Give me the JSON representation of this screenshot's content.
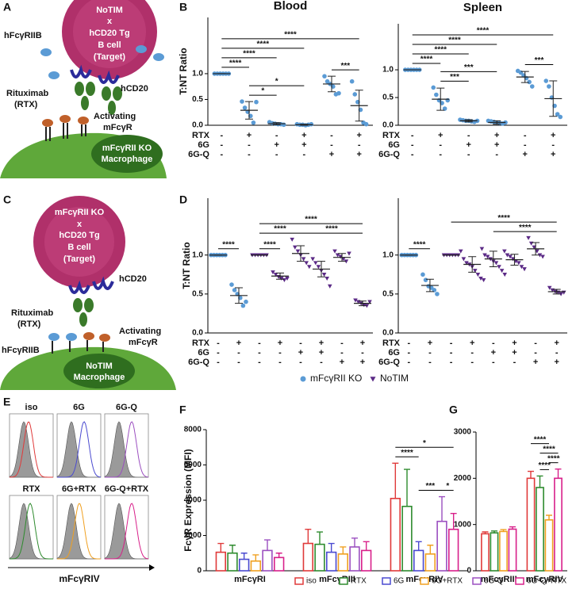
{
  "panel_labels": [
    "A",
    "B",
    "C",
    "D",
    "E",
    "F",
    "G"
  ],
  "diagram_A": {
    "target": [
      "NoTIM",
      "x",
      "hCD20 Tg",
      "B cell",
      "(Target)"
    ],
    "inhibitory": "hFcγRIIB",
    "antibody": [
      "Rituximab",
      "(RTX)"
    ],
    "antigen": "hCD20",
    "activating": [
      "Activating",
      "mFcγR"
    ],
    "macrophage": [
      "mFcγRII KO",
      "Macrophage"
    ]
  },
  "diagram_C": {
    "target": [
      "mFcγRII KO",
      "x",
      "hCD20 Tg",
      "B cell",
      "(Target)"
    ],
    "antigen": "hCD20",
    "antibody": [
      "Rituximab",
      "(RTX)"
    ],
    "inhibitory": "hFcγRIIB",
    "activating": [
      "Activating",
      "mFcγR"
    ],
    "macrophage": [
      "NoTIM",
      "Macrophage"
    ]
  },
  "flow": {
    "panels": [
      "iso",
      "6G",
      "6G-Q",
      "RTX",
      "6G+RTX",
      "6G-Q+RTX"
    ],
    "colors": [
      "#e03a3a",
      "#4a4ad0",
      "#9b4fc0",
      "#2e8b2e",
      "#f0a020",
      "#d8208a"
    ],
    "xlabel": "mFcγRIV"
  },
  "dot_legend": [
    {
      "name": "mFcγRII KO",
      "color": "#5b9bd5",
      "marker": "circle"
    },
    {
      "name": "NoTIM",
      "color": "#5b2a86",
      "marker": "triangle"
    }
  ],
  "chart_data": [
    {
      "type": "dotplot",
      "title": "Blood",
      "ylabel": "T:NT Ratio",
      "ylim": [
        0,
        2.09
      ],
      "yticks": [
        {
          "value": 0,
          "label": "0.0"
        },
        {
          "value": 0.5,
          "label": "0.5"
        },
        {
          "value": 1,
          "label": "1.0"
        }
      ],
      "conditions": [
        {
          "name": "RTX",
          "values": [
            "-",
            "+",
            "-",
            "+",
            "-",
            "+"
          ]
        },
        {
          "name": "6G",
          "values": [
            "-",
            "-",
            "+",
            "+",
            "-",
            "-"
          ]
        },
        {
          "name": "6G-Q",
          "values": [
            "-",
            "-",
            "-",
            "-",
            "+",
            "+"
          ]
        }
      ],
      "groups": [
        {
          "color": "#5b9bd5",
          "marker": "circle",
          "points": [
            1,
            1,
            1,
            1,
            1,
            1
          ],
          "mean": 1,
          "sd": 0
        },
        {
          "color": "#5b9bd5",
          "marker": "circle",
          "points": [
            0.46,
            0.34,
            0.26,
            0.18,
            0.05,
            0.45
          ],
          "mean": 0.29,
          "sd": 0.17
        },
        {
          "color": "#5b9bd5",
          "marker": "circle",
          "points": [
            0.06,
            0.04,
            0.03,
            0.02,
            0.02,
            0.01
          ],
          "mean": 0.03,
          "sd": 0.02
        },
        {
          "color": "#5b9bd5",
          "marker": "circle",
          "points": [
            0.02,
            0.01,
            0.01,
            0,
            0.01,
            0.02
          ],
          "mean": 0.01,
          "sd": 0.01
        },
        {
          "color": "#5b9bd5",
          "marker": "circle",
          "points": [
            0.95,
            0.85,
            0.8,
            0.75,
            0.6,
            0.62
          ],
          "mean": 0.8,
          "sd": 0.15
        },
        {
          "color": "#5b9bd5",
          "marker": "circle",
          "points": [
            0.85,
            0.6,
            0.45,
            0.3,
            0.05,
            0.02
          ],
          "mean": 0.38,
          "sd": 0.3
        }
      ],
      "comparisons": [
        {
          "from": 1,
          "to": 2,
          "label": "*"
        },
        {
          "from": 1,
          "to": 3,
          "label": "*"
        },
        {
          "from": 4,
          "to": 5,
          "label": "***"
        },
        {
          "from": 0,
          "to": 1,
          "label": "****"
        },
        {
          "from": 0,
          "to": 2,
          "label": "****"
        },
        {
          "from": 0,
          "to": 3,
          "label": "****"
        },
        {
          "from": 0,
          "to": 5,
          "label": "****"
        }
      ]
    },
    {
      "type": "dotplot",
      "title": "Spleen",
      "ylim": [
        0,
        1.83
      ],
      "yticks": [
        {
          "value": 0,
          "label": "0.0"
        },
        {
          "value": 0.5,
          "label": "0.5"
        },
        {
          "value": 1,
          "label": "1.0"
        }
      ],
      "conditions": [
        {
          "name": "RTX",
          "values": [
            "-",
            "+",
            "-",
            "+",
            "-",
            "+"
          ]
        },
        {
          "name": "6G",
          "values": [
            "-",
            "-",
            "+",
            "+",
            "-",
            "-"
          ]
        },
        {
          "name": "6G-Q",
          "values": [
            "-",
            "-",
            "-",
            "-",
            "+",
            "+"
          ]
        }
      ],
      "groups": [
        {
          "color": "#5b9bd5",
          "marker": "circle",
          "points": [
            1,
            1,
            1,
            1,
            1,
            1
          ],
          "mean": 1,
          "sd": 0
        },
        {
          "color": "#5b9bd5",
          "marker": "circle",
          "points": [
            0.68,
            0.55,
            0.45,
            0.4,
            0.3,
            0.45
          ],
          "mean": 0.47,
          "sd": 0.2
        },
        {
          "color": "#5b9bd5",
          "marker": "circle",
          "points": [
            0.1,
            0.09,
            0.08,
            0.08,
            0.07,
            0.06,
            0.08
          ],
          "mean": 0.08,
          "sd": 0.02
        },
        {
          "color": "#5b9bd5",
          "marker": "circle",
          "points": [
            0.08,
            0.07,
            0.06,
            0.05,
            0.04,
            0.03,
            0.05
          ],
          "mean": 0.05,
          "sd": 0.03
        },
        {
          "color": "#5b9bd5",
          "marker": "circle",
          "points": [
            0.98,
            0.95,
            0.9,
            0.85,
            0.78,
            0.7
          ],
          "mean": 0.87,
          "sd": 0.1
        },
        {
          "color": "#5b9bd5",
          "marker": "circle",
          "points": [
            0.8,
            0.7,
            0.5,
            0.35,
            0.2,
            0.15
          ],
          "mean": 0.48,
          "sd": 0.32
        }
      ],
      "comparisons": [
        {
          "from": 4,
          "to": 5,
          "label": "***"
        },
        {
          "from": 1,
          "to": 2,
          "label": "***"
        },
        {
          "from": 1,
          "to": 3,
          "label": "***"
        },
        {
          "from": 0,
          "to": 1,
          "label": "****"
        },
        {
          "from": 0,
          "to": 2,
          "label": "****"
        },
        {
          "from": 0,
          "to": 3,
          "label": "****"
        },
        {
          "from": 0,
          "to": 5,
          "label": "****"
        }
      ]
    },
    {
      "type": "dotplot",
      "ylabel": "T:NT Ratio",
      "ylim": [
        0,
        1.73
      ],
      "yticks": [
        {
          "value": 0,
          "label": "0.0"
        },
        {
          "value": 0.5,
          "label": "0.5"
        },
        {
          "value": 1,
          "label": "1.0"
        }
      ],
      "conditions": [
        {
          "name": "RTX",
          "values": [
            "-",
            "+",
            "-",
            "+",
            "-",
            "+",
            "-",
            "+"
          ]
        },
        {
          "name": "6G",
          "values": [
            "-",
            "-",
            "-",
            "-",
            "+",
            "+",
            "-",
            "-"
          ]
        },
        {
          "name": "6G-Q",
          "values": [
            "-",
            "-",
            "-",
            "-",
            "-",
            "-",
            "+",
            "+"
          ]
        }
      ],
      "groups": [
        {
          "color": "#5b9bd5",
          "marker": "circle",
          "points": [
            1,
            1,
            1,
            1,
            1,
            1
          ],
          "mean": 1,
          "sd": 0
        },
        {
          "color": "#5b9bd5",
          "marker": "circle",
          "points": [
            0.62,
            0.55,
            0.5,
            0.45,
            0.35,
            0.4
          ],
          "mean": 0.48,
          "sd": 0.1
        },
        {
          "color": "#5b2a86",
          "marker": "triangle",
          "points": [
            1,
            1,
            1,
            1,
            1,
            1
          ],
          "mean": 1,
          "sd": 0
        },
        {
          "color": "#5b2a86",
          "marker": "triangle",
          "points": [
            0.78,
            0.75,
            0.72,
            0.7,
            0.68,
            0.7
          ],
          "mean": 0.73,
          "sd": 0.04
        },
        {
          "color": "#5b2a86",
          "marker": "triangle",
          "points": [
            1.2,
            1.1,
            1.05,
            1,
            0.95,
            0.9,
            0.85
          ],
          "mean": 1.02,
          "sd": 0.1
        },
        {
          "color": "#5b2a86",
          "marker": "triangle",
          "points": [
            0.95,
            0.9,
            0.85,
            0.8,
            0.75,
            0.7,
            0.6
          ],
          "mean": 0.82,
          "sd": 0.1
        },
        {
          "color": "#5b2a86",
          "marker": "triangle",
          "points": [
            1.05,
            1,
            0.98,
            0.95,
            0.92,
            1.02
          ],
          "mean": 0.97,
          "sd": 0.05
        },
        {
          "color": "#5b2a86",
          "marker": "triangle",
          "points": [
            0.42,
            0.4,
            0.38,
            0.36,
            0.35,
            0.4
          ],
          "mean": 0.38,
          "sd": 0.03
        }
      ],
      "comparisons": [
        {
          "from": 0,
          "to": 1,
          "label": "****"
        },
        {
          "from": 2,
          "to": 3,
          "label": "****"
        },
        {
          "from": 2,
          "to": 4,
          "label": "****"
        },
        {
          "from": 4,
          "to": 7,
          "label": "****"
        },
        {
          "from": 2,
          "to": 7,
          "label": "****"
        }
      ]
    },
    {
      "type": "dotplot",
      "ylim": [
        0,
        1.73
      ],
      "yticks": [
        {
          "value": 0,
          "label": "0.0"
        },
        {
          "value": 0.5,
          "label": "0.5"
        },
        {
          "value": 1,
          "label": "1.0"
        }
      ],
      "conditions": [
        {
          "name": "RTX",
          "values": [
            "-",
            "+",
            "-",
            "+",
            "-",
            "+",
            "-",
            "+"
          ]
        },
        {
          "name": "6G",
          "values": [
            "-",
            "-",
            "-",
            "-",
            "+",
            "+",
            "-",
            "-"
          ]
        },
        {
          "name": "6G-Q",
          "values": [
            "-",
            "-",
            "-",
            "-",
            "-",
            "-",
            "+",
            "+"
          ]
        }
      ],
      "groups": [
        {
          "color": "#5b9bd5",
          "marker": "circle",
          "points": [
            1,
            1,
            1,
            1,
            1,
            1
          ],
          "mean": 1,
          "sd": 0
        },
        {
          "color": "#5b9bd5",
          "marker": "circle",
          "points": [
            0.75,
            0.68,
            0.6,
            0.58,
            0.55,
            0.5
          ],
          "mean": 0.61,
          "sd": 0.08
        },
        {
          "color": "#5b2a86",
          "marker": "triangle",
          "points": [
            1,
            1,
            1,
            1,
            1,
            1
          ],
          "mean": 1,
          "sd": 0
        },
        {
          "color": "#5b2a86",
          "marker": "triangle",
          "points": [
            1.05,
            0.95,
            0.9,
            0.88,
            0.85,
            0.8,
            0.75,
            0.7,
            0.68
          ],
          "mean": 0.88,
          "sd": 0.1
        },
        {
          "color": "#5b2a86",
          "marker": "triangle",
          "points": [
            1.08,
            1,
            0.98,
            0.95,
            0.92,
            0.9,
            0.85,
            0.8,
            0.75
          ],
          "mean": 0.95,
          "sd": 0.1
        },
        {
          "color": "#5b2a86",
          "marker": "triangle",
          "points": [
            1.05,
            1,
            0.98,
            0.95,
            0.92,
            0.9,
            0.85,
            0.82
          ],
          "mean": 0.94,
          "sd": 0.07
        },
        {
          "color": "#5b2a86",
          "marker": "triangle",
          "points": [
            1.22,
            1.15,
            1.1,
            1.05,
            1,
            0.98
          ],
          "mean": 1.08,
          "sd": 0.08
        },
        {
          "color": "#5b2a86",
          "marker": "triangle",
          "points": [
            0.58,
            0.55,
            0.53,
            0.52,
            0.5,
            0.52
          ],
          "mean": 0.53,
          "sd": 0.03
        }
      ],
      "comparisons": [
        {
          "from": 0,
          "to": 1,
          "label": "****"
        },
        {
          "from": 4,
          "to": 7,
          "label": "****"
        },
        {
          "from": 2,
          "to": 7,
          "label": "****"
        }
      ]
    },
    {
      "type": "bar",
      "ylabel": "FcγR Expression (MFI)",
      "categories": [
        "mFcγRI",
        "mFcγRIII",
        "mFcγRIV"
      ],
      "ylim": [
        0,
        8000
      ],
      "yticks": [
        0,
        2000,
        4000,
        6000,
        8000
      ],
      "series": [
        {
          "name": "iso",
          "color": "#e03a3a",
          "values": [
            1050,
            1550,
            4100
          ],
          "errors": [
            500,
            800,
            2000
          ]
        },
        {
          "name": "RTX",
          "color": "#2e8b2e",
          "values": [
            1000,
            1500,
            3650
          ],
          "errors": [
            450,
            700,
            2100
          ]
        },
        {
          "name": "6G",
          "color": "#4a4ad0",
          "values": [
            650,
            1050,
            1150
          ],
          "errors": [
            350,
            500,
            500
          ]
        },
        {
          "name": "6G+RTX",
          "color": "#f0a020",
          "values": [
            550,
            950,
            950
          ],
          "errors": [
            350,
            400,
            500
          ]
        },
        {
          "name": "6G-Q",
          "color": "#9b4fc0",
          "values": [
            1150,
            1350,
            2800
          ],
          "errors": [
            600,
            500,
            1400
          ]
        },
        {
          "name": "6G-Q+RTX",
          "color": "#d8208a",
          "values": [
            750,
            1150,
            2350
          ],
          "errors": [
            250,
            500,
            900
          ]
        }
      ],
      "comparisons": [
        {
          "category": 2,
          "from": 2,
          "to": 4,
          "label": "***"
        },
        {
          "category": 2,
          "from": 4,
          "to": 5,
          "label": "*"
        },
        {
          "category": 2,
          "from": 0,
          "to": 2,
          "label": "****"
        },
        {
          "category": 2,
          "from": 0,
          "to": 5,
          "label": "*"
        }
      ]
    },
    {
      "type": "bar",
      "categories": [
        "mFcγRIII",
        "mFcγRIV"
      ],
      "ylim": [
        0,
        3000
      ],
      "yticks": [
        0,
        1000,
        2000,
        3000
      ],
      "series": [
        {
          "color": "#e03a3a",
          "values": [
            800,
            2000
          ],
          "errors": [
            40,
            150
          ]
        },
        {
          "color": "#2e8b2e",
          "values": [
            820,
            1800
          ],
          "errors": [
            40,
            250
          ]
        },
        {
          "color": "#f0a020",
          "values": [
            850,
            1100
          ],
          "errors": [
            40,
            100
          ]
        },
        {
          "color": "#d8208a",
          "values": [
            900,
            2000
          ],
          "errors": [
            50,
            200
          ]
        }
      ],
      "comparisons": [
        {
          "category": 1,
          "from": 2,
          "to": 3,
          "label": "****"
        },
        {
          "category": 1,
          "from": 1,
          "to": 2,
          "label": "****"
        },
        {
          "category": 1,
          "from": 1,
          "to": 3,
          "label": "****"
        },
        {
          "category": 1,
          "from": 0,
          "to": 2,
          "label": "****"
        }
      ]
    }
  ]
}
